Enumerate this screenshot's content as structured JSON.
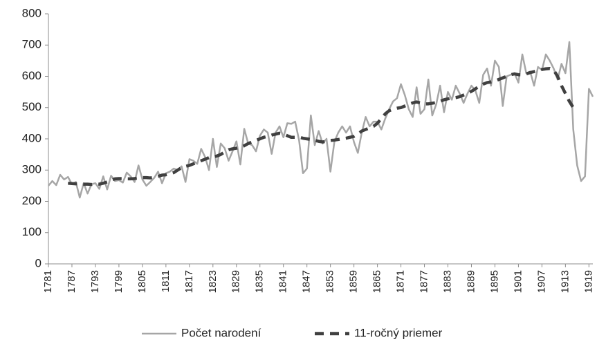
{
  "chart_data": {
    "type": "line",
    "x": [
      1781,
      1782,
      1783,
      1784,
      1785,
      1786,
      1787,
      1788,
      1789,
      1790,
      1791,
      1792,
      1793,
      1794,
      1795,
      1796,
      1797,
      1798,
      1799,
      1800,
      1801,
      1802,
      1803,
      1804,
      1805,
      1806,
      1807,
      1808,
      1809,
      1810,
      1811,
      1812,
      1813,
      1814,
      1815,
      1816,
      1817,
      1818,
      1819,
      1820,
      1821,
      1822,
      1823,
      1824,
      1825,
      1826,
      1827,
      1828,
      1829,
      1830,
      1831,
      1832,
      1833,
      1834,
      1835,
      1836,
      1837,
      1838,
      1839,
      1840,
      1841,
      1842,
      1843,
      1844,
      1845,
      1846,
      1847,
      1848,
      1849,
      1850,
      1851,
      1852,
      1853,
      1854,
      1855,
      1856,
      1857,
      1858,
      1859,
      1860,
      1861,
      1862,
      1863,
      1864,
      1865,
      1866,
      1867,
      1868,
      1869,
      1870,
      1871,
      1872,
      1873,
      1874,
      1875,
      1876,
      1877,
      1878,
      1879,
      1880,
      1881,
      1882,
      1883,
      1884,
      1885,
      1886,
      1887,
      1888,
      1889,
      1890,
      1891,
      1892,
      1893,
      1894,
      1895,
      1896,
      1897,
      1898,
      1899,
      1900,
      1901,
      1902,
      1903,
      1904,
      1905,
      1906,
      1907,
      1908,
      1909,
      1910,
      1911,
      1912,
      1913,
      1914,
      1915,
      1916,
      1917,
      1918,
      1919,
      1920
    ],
    "series": [
      {
        "name": "Počet narodení",
        "color": "#a6a6a6",
        "dashed": false,
        "values": [
          250,
          265,
          252,
          285,
          270,
          278,
          255,
          262,
          212,
          258,
          225,
          255,
          258,
          240,
          280,
          238,
          282,
          265,
          268,
          260,
          292,
          280,
          262,
          315,
          270,
          250,
          262,
          275,
          295,
          258,
          290,
          295,
          305,
          300,
          312,
          262,
          335,
          330,
          320,
          368,
          342,
          300,
          400,
          310,
          385,
          370,
          330,
          360,
          392,
          318,
          432,
          385,
          380,
          360,
          410,
          430,
          420,
          352,
          420,
          440,
          405,
          450,
          448,
          455,
          395,
          290,
          305,
          475,
          380,
          425,
          385,
          400,
          295,
          390,
          420,
          440,
          420,
          440,
          390,
          355,
          420,
          470,
          440,
          455,
          455,
          430,
          465,
          495,
          520,
          530,
          575,
          540,
          495,
          470,
          565,
          480,
          495,
          590,
          475,
          510,
          570,
          485,
          550,
          525,
          570,
          545,
          515,
          545,
          570,
          555,
          515,
          605,
          625,
          570,
          650,
          630,
          505,
          600,
          605,
          610,
          580,
          670,
          610,
          615,
          570,
          630,
          620,
          670,
          650,
          625,
          590,
          640,
          610,
          710,
          430,
          315,
          265,
          280,
          560,
          535
        ]
      },
      {
        "name": "11-ročný priemer",
        "color": "#404040",
        "dashed": true,
        "values": [
          null,
          null,
          null,
          null,
          null,
          258,
          257,
          256,
          256,
          255,
          255,
          254,
          256,
          255,
          258,
          262,
          268,
          272,
          273,
          273,
          272,
          272,
          273,
          275,
          276,
          276,
          275,
          277,
          280,
          284,
          285,
          288,
          292,
          300,
          308,
          312,
          315,
          320,
          325,
          330,
          335,
          340,
          342,
          345,
          350,
          358,
          365,
          368,
          370,
          372,
          378,
          385,
          390,
          395,
          400,
          405,
          408,
          412,
          415,
          418,
          416,
          410,
          405,
          405,
          405,
          402,
          400,
          398,
          395,
          392,
          390,
          392,
          395,
          396,
          398,
          400,
          402,
          405,
          408,
          415,
          425,
          430,
          435,
          440,
          450,
          465,
          480,
          490,
          495,
          498,
          500,
          505,
          510,
          515,
          518,
          515,
          512,
          512,
          514,
          516,
          520,
          525,
          528,
          530,
          532,
          535,
          540,
          545,
          552,
          560,
          568,
          575,
          580,
          582,
          585,
          590,
          595,
          600,
          605,
          608,
          605,
          605,
          608,
          612,
          615,
          618,
          622,
          624,
          625,
          620,
          600,
          570,
          545,
          520,
          500,
          null,
          null,
          null,
          null,
          null
        ]
      }
    ],
    "xlim": [
      1781,
      1920
    ],
    "xticks": [
      1781,
      1787,
      1793,
      1799,
      1805,
      1811,
      1817,
      1823,
      1829,
      1835,
      1841,
      1847,
      1853,
      1859,
      1865,
      1871,
      1877,
      1883,
      1889,
      1895,
      1901,
      1907,
      1913,
      1919
    ],
    "ylim": [
      0,
      800
    ],
    "yticks": [
      0,
      100,
      200,
      300,
      400,
      500,
      600,
      700,
      800
    ],
    "grid": false,
    "legend": "bottom"
  }
}
